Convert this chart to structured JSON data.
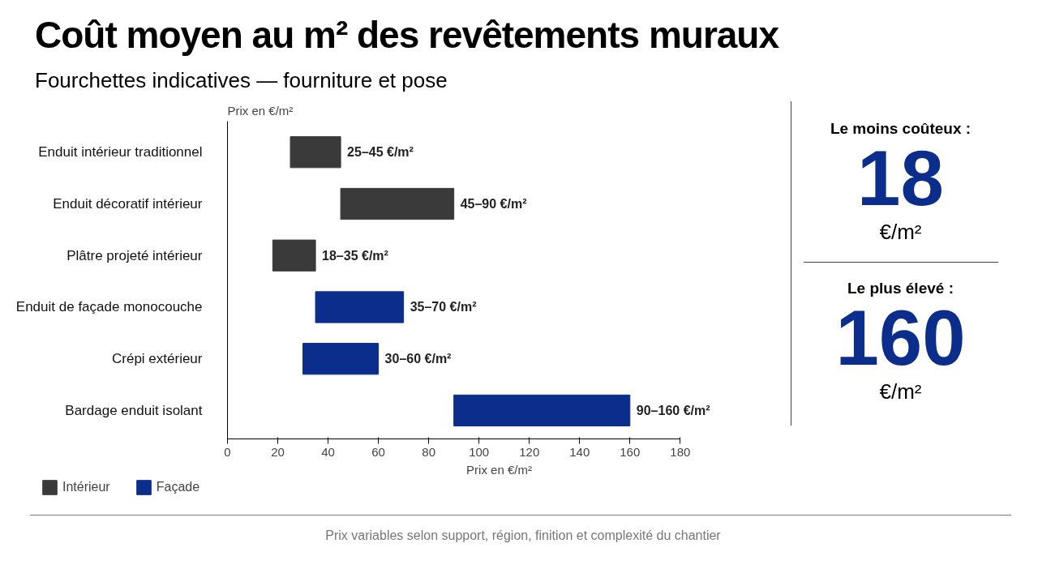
{
  "chart_data": {
    "type": "bar",
    "orientation": "horizontal",
    "title": "Coût moyen au m² des revêtements muraux",
    "subtitle": "Fourchettes indicatives — fourniture et pose",
    "xlabel": "Prix en €/m²",
    "categories": [
      "Enduit intérieur traditionnel",
      "Enduit décoratif intérieur",
      "Plâtre projeté intérieur",
      "Enduit de façade monocouche",
      "Crépi extérieur",
      "Bardage enduit isolant"
    ],
    "series": [
      {
        "name": "Intérieur",
        "color": "#3a3a3a",
        "base": [
          25,
          45,
          18,
          null,
          null,
          null
        ],
        "values": [
          20,
          45,
          17,
          null,
          null,
          null
        ],
        "value_labels": [
          "25–45 €/m²",
          "45–90 €/m²",
          "18–35 €/m²",
          null,
          null,
          null
        ]
      },
      {
        "name": "Façade",
        "color": "#0b2d8c",
        "base": [
          null,
          null,
          null,
          35,
          30,
          90
        ],
        "values": [
          null,
          null,
          null,
          35,
          30,
          70
        ],
        "value_labels": [
          null,
          null,
          null,
          "35–70 €/m²",
          "30–60 €/m²",
          "90–160 €/m²"
        ]
      }
    ],
    "xlim": [
      0,
      180
    ],
    "xticks": [
      0,
      20,
      40,
      60,
      80,
      100,
      120,
      140,
      160,
      180
    ],
    "legend": "bottom left",
    "annotations": [
      "Prix en €/m²",
      "Le moins coûteux :",
      "18",
      "€/m²",
      "Le plus élevé :",
      "160",
      "€/m²",
      "Prix variables selon support, région, finition et complexité du chantier"
    ]
  }
}
